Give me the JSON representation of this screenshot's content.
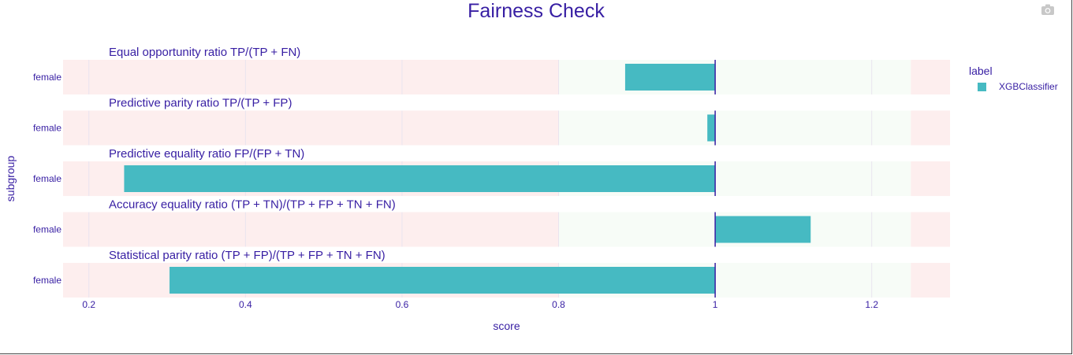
{
  "title": "Fairness Check",
  "legend": {
    "title": "label",
    "items": [
      "XGBClassifier"
    ]
  },
  "colors": {
    "bar": "#46bac2",
    "text": "#371ea3",
    "red_zone": "#fdeeee",
    "green_zone": "#f7fcf7",
    "reference_line": "#371ea3"
  },
  "chart_data": {
    "type": "bar",
    "orientation": "horizontal",
    "title": "Fairness Check",
    "xlabel": "score",
    "ylabel": "subgroup",
    "xlim": [
      0.167,
      1.3
    ],
    "xticks": [
      0.2,
      0.4,
      0.6,
      0.8,
      1.0
    ],
    "xtick_labels": [
      "0.2",
      "0.4",
      "0.6",
      "0.8",
      "1"
    ],
    "extra_ticks": [
      1.2
    ],
    "extra_tick_labels": [
      "1.2"
    ],
    "base": 1.0,
    "acceptable_range": [
      0.8,
      1.25
    ],
    "series": [
      {
        "name": "XGBClassifier",
        "color": "#46bac2"
      }
    ],
    "panels": [
      {
        "metric": "Equal opportunity ratio",
        "formula": "TP/(TP + FN)",
        "subgroup": "female",
        "value": 0.885
      },
      {
        "metric": "Predictive parity ratio",
        "formula": "TP/(TP + FP)",
        "subgroup": "female",
        "value": 0.99
      },
      {
        "metric": "Predictive equality ratio",
        "formula": "FP/(FP + TN)",
        "subgroup": "female",
        "value": 0.245
      },
      {
        "metric": "Accuracy equality ratio",
        "formula": "(TP + TN)/(TP + FP + TN + FN)",
        "subgroup": "female",
        "value": 1.122
      },
      {
        "metric": "Statistical parity ratio",
        "formula": "(TP + FP)/(TP + FP + TN + FN)",
        "subgroup": "female",
        "value": 0.303
      }
    ],
    "legend": "top-right",
    "grid": true
  }
}
